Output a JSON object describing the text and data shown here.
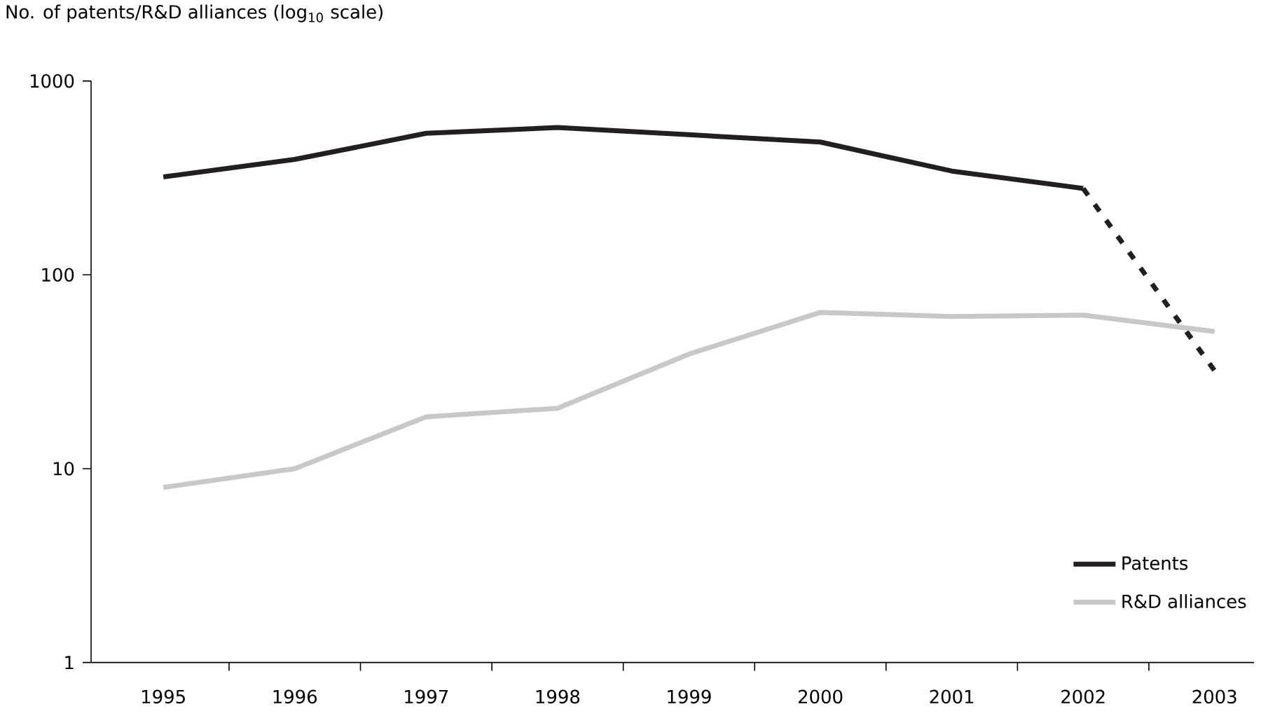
{
  "chart_data": {
    "type": "line",
    "ylabel": "No. of patents/R&D alliances (log$_{10}$ scale)",
    "categories": [
      "1995",
      "1996",
      "1997",
      "1998",
      "1999",
      "2000",
      "2001",
      "2002",
      "2003"
    ],
    "series": [
      {
        "name": "Patents",
        "color": "#231f20",
        "values": [
          320,
          394,
          537,
          575,
          528,
          484,
          343,
          279,
          null
        ]
      },
      {
        "color": "#231f20",
        "line_style": "dotted",
        "values": [
          null,
          null,
          null,
          null,
          null,
          null,
          null,
          279,
          32
        ]
      },
      {
        "name": "R&D alliances",
        "color": "#c8c8c8",
        "values": [
          8,
          10,
          18.5,
          20.5,
          39,
          64,
          61,
          62,
          51
        ]
      }
    ],
    "log": "y",
    "ylim": [
      1,
      1000
    ],
    "yticks": [
      1,
      10,
      100,
      1000
    ],
    "legend": "bottom right",
    "grid": false,
    "line_style": "solid"
  }
}
